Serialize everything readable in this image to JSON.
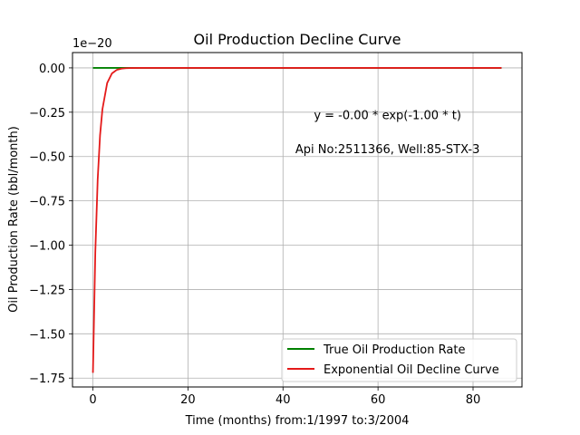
{
  "chart_data": {
    "type": "line",
    "title": "Oil Production Decline Curve",
    "xlabel": "Time (months) from:1/1997 to:3/2004",
    "ylabel": "Oil Production Rate (bbl/month)",
    "offset_label": "1e−20",
    "xlim": [
      -4.3,
      90.3
    ],
    "ylim": [
      -1.8,
      0.0865
    ],
    "x_ticks": [
      0,
      20,
      40,
      60,
      80
    ],
    "x_tick_labels": [
      "0",
      "20",
      "40",
      "60",
      "80"
    ],
    "y_ticks": [
      0,
      -0.25,
      -0.5,
      -0.75,
      -1.0,
      -1.25,
      -1.5,
      -1.75
    ],
    "y_tick_labels": [
      "0.00",
      "−0.25",
      "−0.50",
      "−0.75",
      "−1.00",
      "−1.25",
      "−1.50",
      "−1.75"
    ],
    "grid": true,
    "legend_position": "lower-right",
    "annotations": [
      {
        "text": "y = -0.00 * exp(-1.00 * t)",
        "x": 62,
        "y": -0.29
      },
      {
        "text": "Api No:2511366, Well:85-STX-3",
        "x": 62,
        "y": -0.48
      }
    ],
    "series": [
      {
        "name": "True Oil Production Rate",
        "color": "#008000",
        "x": [
          0,
          86
        ],
        "y": [
          0,
          0
        ]
      },
      {
        "name": "Exponential Oil Decline Curve",
        "color": "#e41a1a",
        "x": [
          0,
          0.5,
          1,
          1.5,
          2,
          3,
          4,
          5,
          6,
          7,
          8,
          10,
          86
        ],
        "y": [
          -1.72,
          -1.04,
          -0.63,
          -0.38,
          -0.233,
          -0.085,
          -0.031,
          -0.0115,
          -0.0043,
          -0.0016,
          -0.0006,
          -0.0001,
          0
        ]
      }
    ]
  }
}
